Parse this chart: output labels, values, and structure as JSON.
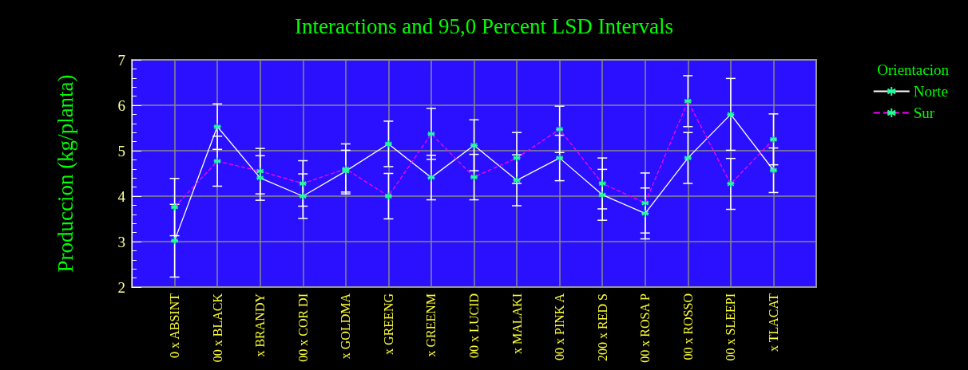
{
  "chart_data": {
    "type": "line",
    "title": "Interactions and 95,0 Percent LSD Intervals",
    "ylabel": "Produccion (kg/planta)",
    "legend_title": "Orientacion",
    "categories": [
      null,
      "0 x ABSINT",
      "00 x BLACK",
      "x BRANDY",
      "00 x COR DI",
      "x GOLDMA",
      "x GREENG",
      "x GREENM",
      "00 x LUCID",
      "x MALAKI",
      "00 x PINK A",
      "200 x RED S",
      "00 x ROSA P",
      "00 x ROSSO",
      "00 x SLEEPI",
      "x TLACAT",
      null
    ],
    "series": [
      {
        "name": "Norte",
        "color": "#ffffff",
        "line_style": "solid",
        "values": [
          null,
          3.02,
          5.53,
          4.4,
          4.0,
          4.55,
          5.15,
          4.41,
          5.12,
          4.35,
          4.84,
          4.03,
          3.62,
          4.84,
          5.8,
          4.57,
          null
        ],
        "errors": [
          null,
          0.8,
          0.5,
          0.49,
          0.49,
          0.46,
          0.5,
          0.49,
          0.56,
          0.56,
          0.5,
          0.56,
          0.56,
          0.56,
          0.79,
          0.49,
          null
        ]
      },
      {
        "name": "Sur",
        "color": "#ff00ff",
        "line_style": "dashed",
        "values": [
          null,
          3.76,
          4.77,
          4.55,
          4.28,
          4.6,
          4.0,
          5.37,
          4.42,
          4.84,
          5.47,
          4.28,
          3.85,
          6.09,
          4.27,
          5.25,
          null
        ],
        "errors": [
          null,
          0.63,
          0.55,
          0.5,
          0.5,
          0.55,
          0.5,
          0.56,
          0.5,
          0.56,
          0.51,
          0.56,
          0.66,
          0.56,
          0.56,
          0.56,
          null
        ]
      }
    ],
    "ylim": [
      2,
      7
    ],
    "yticks": [
      2,
      3,
      4,
      5,
      6,
      7
    ],
    "grid": true,
    "legend": "top right",
    "marker": "cross"
  }
}
